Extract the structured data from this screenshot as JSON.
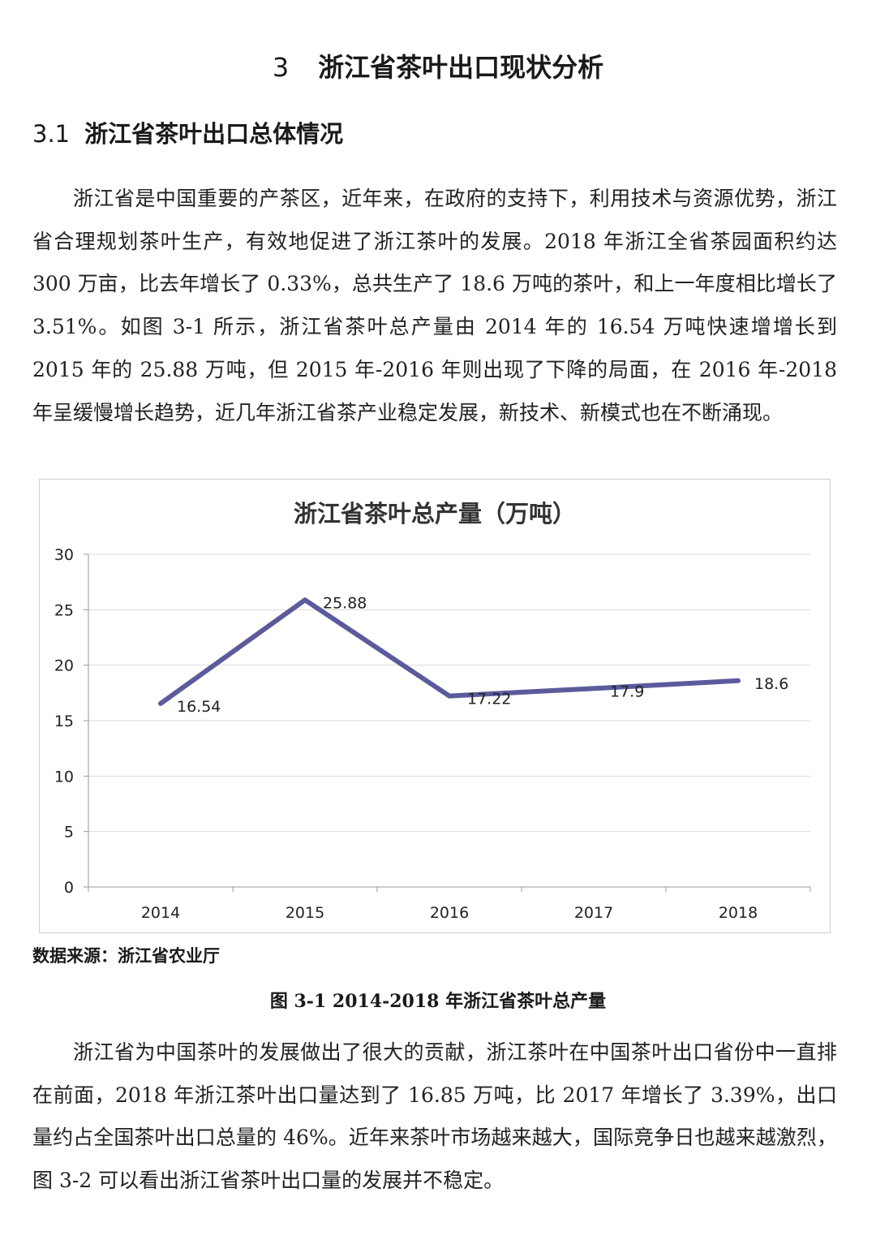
{
  "section": {
    "number": "3",
    "title": "浙江省茶叶出口现状分析"
  },
  "subsection": {
    "number": "3.1",
    "title": "浙江省茶叶出口总体情况"
  },
  "paragraphs": [
    "浙江省是中国重要的产茶区，近年来，在政府的支持下，利用技术与资源优势，浙江省合理规划茶叶生产，有效地促进了浙江茶叶的发展。2018 年浙江全省茶园面积约达 300 万亩，比去年增长了 0.33%，总共生产了 18.6 万吨的茶叶，和上一年度相比增长了 3.51%。如图 3-1 所示，浙江省茶叶总产量由 2014 年的 16.54 万吨快速增增长到 2015 年的 25.88 万吨，但 2015 年-2016 年则出现了下降的局面，在 2016 年-2018 年呈缓慢增长趋势，近几年浙江省茶产业稳定发展，新技术、新模式也在不断涌现。",
    "浙江省为中国茶叶的发展做出了很大的贡献，浙江茶叶在中国茶叶出口省份中一直排在前面，2018 年浙江茶叶出口量达到了 16.85 万吨，比 2017 年增长了 3.39%，出口量约占全国茶叶出口总量的 46%。近年来茶叶市场越来越大，国际竞争日也越来越激烈，图 3-2 可以看出浙江省茶叶出口量的发展并不稳定。"
  ],
  "chart_data": {
    "type": "line",
    "title": "浙江省茶叶总产量（万吨）",
    "categories": [
      "2014",
      "2015",
      "2016",
      "2017",
      "2018"
    ],
    "values": [
      16.54,
      25.88,
      17.22,
      17.9,
      18.6
    ],
    "data_labels": [
      "16.54",
      "25.88",
      "17.22",
      "17.9",
      "18.6"
    ],
    "ylim": [
      0,
      30
    ],
    "yticks": [
      0,
      5,
      10,
      15,
      20,
      25,
      30
    ],
    "ytick_labels": [
      "0",
      "5",
      "10",
      "15",
      "20",
      "25",
      "30"
    ],
    "grid": true,
    "legend": "none",
    "line_color": "#5b5b9c",
    "grid_color": "#d9d9d9"
  },
  "source_note": "数据来源：浙江省农业厅",
  "figure_caption": "图 3-1 2014-2018 年浙江省茶叶总产量"
}
